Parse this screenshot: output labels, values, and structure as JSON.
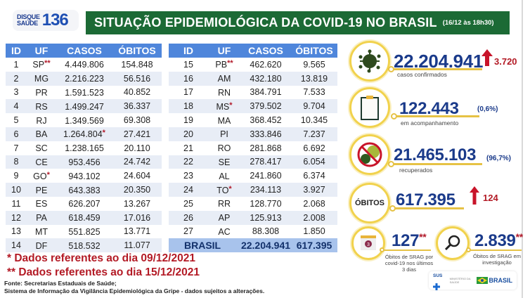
{
  "header": {
    "logo_top": "DISQUE",
    "logo_bottom": "SAÚDE",
    "logo_number": "136",
    "title": "SITUAÇÃO EPIDEMIOLÓGICA DA COVID-19 NO BRASIL",
    "timestamp": "(16/12 às 18h30)"
  },
  "table": {
    "columns": [
      "ID",
      "UF",
      "CASOS",
      "ÓBITOS"
    ],
    "left_rows": [
      {
        "id": "1",
        "uf": "SP",
        "uf_mark": "**",
        "casos": "4.449.806",
        "casos_mark": "",
        "obitos": "154.848"
      },
      {
        "id": "2",
        "uf": "MG",
        "uf_mark": "",
        "casos": "2.216.223",
        "casos_mark": "",
        "obitos": "56.516"
      },
      {
        "id": "3",
        "uf": "PR",
        "uf_mark": "",
        "casos": "1.591.523",
        "casos_mark": "",
        "obitos": "40.852"
      },
      {
        "id": "4",
        "uf": "RS",
        "uf_mark": "",
        "casos": "1.499.247",
        "casos_mark": "",
        "obitos": "36.337"
      },
      {
        "id": "5",
        "uf": "RJ",
        "uf_mark": "",
        "casos": "1.349.569",
        "casos_mark": "",
        "obitos": "69.308"
      },
      {
        "id": "6",
        "uf": "BA",
        "uf_mark": "",
        "casos": "1.264.804",
        "casos_mark": "*",
        "obitos": "27.421"
      },
      {
        "id": "7",
        "uf": "SC",
        "uf_mark": "",
        "casos": "1.238.165",
        "casos_mark": "",
        "obitos": "20.110"
      },
      {
        "id": "8",
        "uf": "CE",
        "uf_mark": "",
        "casos": "953.456",
        "casos_mark": "",
        "obitos": "24.742"
      },
      {
        "id": "9",
        "uf": "GO",
        "uf_mark": "*",
        "casos": "943.102",
        "casos_mark": "",
        "obitos": "24.604"
      },
      {
        "id": "10",
        "uf": "PE",
        "uf_mark": "",
        "casos": "643.383",
        "casos_mark": "",
        "obitos": "20.350"
      },
      {
        "id": "11",
        "uf": "ES",
        "uf_mark": "",
        "casos": "626.207",
        "casos_mark": "",
        "obitos": "13.267"
      },
      {
        "id": "12",
        "uf": "PA",
        "uf_mark": "",
        "casos": "618.459",
        "casos_mark": "",
        "obitos": "17.016"
      },
      {
        "id": "13",
        "uf": "MT",
        "uf_mark": "",
        "casos": "551.825",
        "casos_mark": "",
        "obitos": "13.771"
      },
      {
        "id": "14",
        "uf": "DF",
        "uf_mark": "",
        "casos": "518.532",
        "casos_mark": "",
        "obitos": "11.077"
      }
    ],
    "right_rows": [
      {
        "id": "15",
        "uf": "PB",
        "uf_mark": "**",
        "casos": "462.620",
        "obitos": "9.565"
      },
      {
        "id": "16",
        "uf": "AM",
        "uf_mark": "",
        "casos": "432.180",
        "obitos": "13.819"
      },
      {
        "id": "17",
        "uf": "RN",
        "uf_mark": "",
        "casos": "384.791",
        "obitos": "7.533"
      },
      {
        "id": "18",
        "uf": "MS",
        "uf_mark": "*",
        "casos": "379.502",
        "obitos": "9.704"
      },
      {
        "id": "19",
        "uf": "MA",
        "uf_mark": "",
        "casos": "368.452",
        "obitos": "10.345"
      },
      {
        "id": "20",
        "uf": "PI",
        "uf_mark": "",
        "casos": "333.846",
        "obitos": "7.237"
      },
      {
        "id": "21",
        "uf": "RO",
        "uf_mark": "",
        "casos": "281.868",
        "obitos": "6.692"
      },
      {
        "id": "22",
        "uf": "SE",
        "uf_mark": "",
        "casos": "278.417",
        "obitos": "6.054"
      },
      {
        "id": "23",
        "uf": "AL",
        "uf_mark": "",
        "casos": "241.860",
        "obitos": "6.374"
      },
      {
        "id": "24",
        "uf": "TO",
        "uf_mark": "*",
        "casos": "234.113",
        "obitos": "3.927"
      },
      {
        "id": "25",
        "uf": "RR",
        "uf_mark": "",
        "casos": "128.770",
        "obitos": "2.068"
      },
      {
        "id": "26",
        "uf": "AP",
        "uf_mark": "",
        "casos": "125.913",
        "obitos": "2.008"
      },
      {
        "id": "27",
        "uf": "AC",
        "uf_mark": "",
        "casos": "88.308",
        "obitos": "1.850"
      }
    ],
    "total": {
      "label": "BRASIL",
      "casos": "22.204.941",
      "obitos": "617.395"
    }
  },
  "notes": {
    "note1": "* Dados referentes ao dia 09/12/2021",
    "note2": "** Dados referentes ao dia 15/12/2021",
    "source1": "Fonte: Secretarias Estaduais de Saúde;",
    "source2": "Sistema de Informação da Vigilância Epidemiológica da Gripe - dados sujeitos a alterações."
  },
  "stats": {
    "confirmed": {
      "value": "22.204.941",
      "caption": "casos confirmados",
      "delta": "3.720",
      "icon": "virus-icon"
    },
    "monitoring": {
      "value": "122.443",
      "caption": "em acompanhamento",
      "pct": "(0,6%)",
      "icon": "clipboard-icon"
    },
    "recovered": {
      "value": "21.465.103",
      "caption": "recuperados",
      "pct": "(96,7%)",
      "icon": "no-virus-icon"
    },
    "deaths": {
      "label": "ÓBITOS",
      "value": "617.395",
      "delta": "124"
    },
    "srag_recent": {
      "value": "127",
      "mark": "**",
      "caption_l1": "Óbitos de SRAG por",
      "caption_l2": "covid-19 nos últimos",
      "caption_l3": "3 dias",
      "icon_num": "3"
    },
    "srag_investigation": {
      "value": "2.839",
      "mark": "**",
      "caption_l1": "Óbitos de SRAG em",
      "caption_l2": "investigação"
    }
  },
  "footer_logos": {
    "sus": "SUS",
    "ministry": "MINISTÉRIO DA SAÚDE",
    "brasil": "BRASIL",
    "brasil_tag": "PÁTRIA AMADA"
  },
  "colors": {
    "title_green": "#1c6a35",
    "header_blue": "#4f86db",
    "stripe": "#e8edf6",
    "total_blue": "#a8c3ec",
    "alert_red": "#b31a25",
    "number_navy": "#1a3a8a",
    "ring_yellow": "#f1d24d"
  }
}
